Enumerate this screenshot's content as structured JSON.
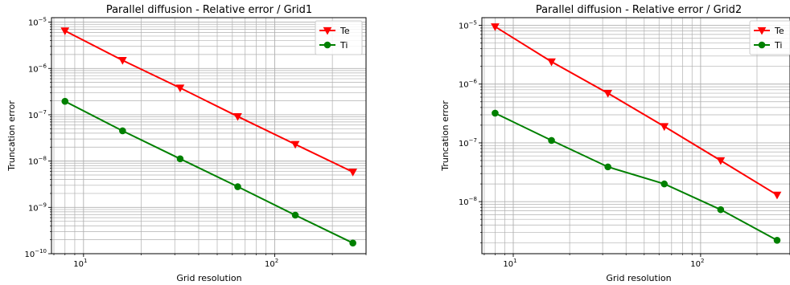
{
  "chart_data": [
    {
      "type": "line",
      "title": "Parallel diffusion - Relative error / Grid1",
      "xlabel": "Grid resolution",
      "ylabel": "Truncation error",
      "xscale": "log",
      "yscale": "log",
      "xlim": [
        6.8,
        300
      ],
      "ylim": [
        1e-10,
        1.25e-05
      ],
      "grid": true,
      "legend": "top-right",
      "x": [
        8,
        16,
        32,
        64,
        128,
        256
      ],
      "x_ticks": [
        {
          "value": 10,
          "label": "10",
          "exp": "1"
        },
        {
          "value": 100,
          "label": "10",
          "exp": "2"
        }
      ],
      "y_ticks": [
        {
          "value": 1e-10,
          "label": "10",
          "exp": "−10"
        },
        {
          "value": 1e-09,
          "label": "10",
          "exp": "−9"
        },
        {
          "value": 1e-08,
          "label": "10",
          "exp": "−8"
        },
        {
          "value": 1e-07,
          "label": "10",
          "exp": "−7"
        },
        {
          "value": 1e-06,
          "label": "10",
          "exp": "−6"
        },
        {
          "value": 1e-05,
          "label": "10",
          "exp": "−5"
        }
      ],
      "series": [
        {
          "name": "Te",
          "color": "#ff0000",
          "marker": "triangle-down",
          "values": [
            6.5e-06,
            1.5e-06,
            3.8e-07,
            9.2e-08,
            2.3e-08,
            5.8e-09
          ]
        },
        {
          "name": "Ti",
          "color": "#008000",
          "marker": "circle",
          "values": [
            1.95e-07,
            4.5e-08,
            1.12e-08,
            2.8e-09,
            6.8e-10,
            1.7e-10
          ]
        }
      ]
    },
    {
      "type": "line",
      "title": "Parallel diffusion - Relative error / Grid2",
      "xlabel": "Grid resolution",
      "ylabel": "Truncation error",
      "xscale": "log",
      "yscale": "log",
      "xlim": [
        6.8,
        300
      ],
      "ylim": [
        1.3e-09,
        1.35e-05
      ],
      "grid": true,
      "legend": "top-right",
      "x": [
        8,
        16,
        32,
        64,
        128,
        256
      ],
      "x_ticks": [
        {
          "value": 10,
          "label": "10",
          "exp": "1"
        },
        {
          "value": 100,
          "label": "10",
          "exp": "2"
        }
      ],
      "y_ticks": [
        {
          "value": 1e-08,
          "label": "10",
          "exp": "−8"
        },
        {
          "value": 1e-07,
          "label": "10",
          "exp": "−7"
        },
        {
          "value": 1e-06,
          "label": "10",
          "exp": "−6"
        },
        {
          "value": 1e-05,
          "label": "10",
          "exp": "−5"
        }
      ],
      "series": [
        {
          "name": "Te",
          "color": "#ff0000",
          "marker": "triangle-down",
          "values": [
            9.5e-06,
            2.4e-06,
            7e-07,
            1.9e-07,
            5e-08,
            1.3e-08
          ]
        },
        {
          "name": "Ti",
          "color": "#008000",
          "marker": "circle",
          "values": [
            3.2e-07,
            1.1e-07,
            3.9e-08,
            2e-08,
            7.3e-09,
            2.2e-09
          ]
        }
      ]
    }
  ]
}
